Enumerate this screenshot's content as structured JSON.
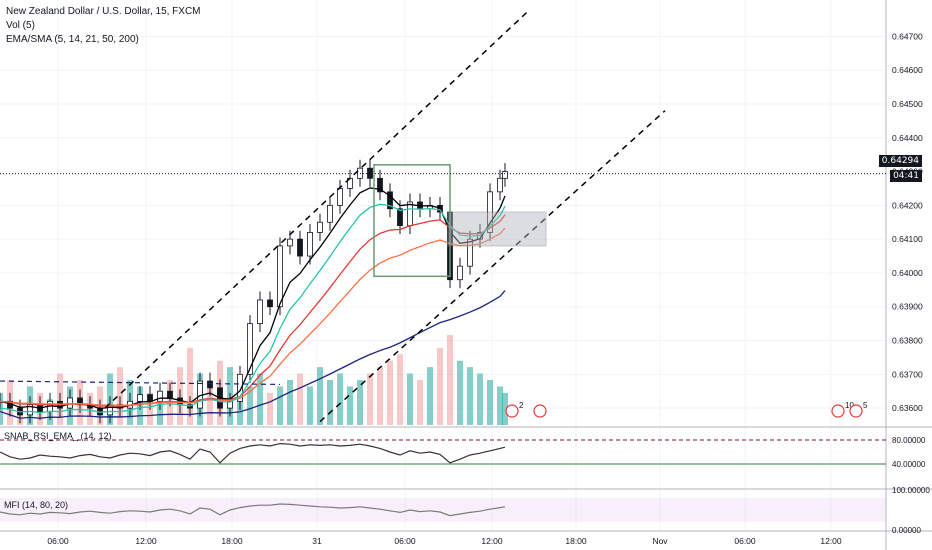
{
  "legend": {
    "title": "New Zealand Dollar / U.S. Dollar, 15, FXCM",
    "vol": "Vol (5)",
    "ma": "EMA/SMA (5, 14, 21, 50, 200)"
  },
  "panes": {
    "rsi_label": "SNAB_RSI_EMA_ (14, 12)",
    "mfi_label": "MFI (14, 80, 20)"
  },
  "price_badge": {
    "last": "0.64294",
    "countdown": "04:41"
  },
  "events": {
    "e1": "2",
    "e2": "10",
    "e3": "5"
  },
  "colors": {
    "up": "#131722",
    "down": "#131722",
    "ema5": "#000000",
    "ema14": "#e53935",
    "ema21": "#ff7043",
    "ema50": "#26c6a8",
    "sma200": "#1a237e",
    "vol_up": "#26a69a",
    "vol_down": "#ef9a9a",
    "rsi_upper": "#880e4f",
    "rsi_lower": "#2e7d32",
    "mfi_line": "#7b7b7b"
  },
  "chart_data": {
    "type": "candlestick",
    "symbol": "NZDUSD",
    "interval": "15",
    "price_axis_ticks": [
      "0.64700",
      "0.64600",
      "0.64500",
      "0.64400",
      "0.64300",
      "0.64200",
      "0.64100",
      "0.64000",
      "0.63900",
      "0.63800",
      "0.63700",
      "0.63600"
    ],
    "ylim": [
      0.6355,
      0.6479
    ],
    "time_axis_ticks": [
      "06:00",
      "12:00",
      "18:00",
      "31",
      "06:00",
      "12:00",
      "18:00",
      "Nov",
      "06:00",
      "12:00"
    ],
    "last_price": 0.64294,
    "price_series": {
      "bars_x_index": [
        0,
        10,
        20,
        30,
        40,
        50,
        60,
        70,
        80,
        90,
        100,
        110,
        120,
        130,
        140,
        150,
        160,
        170,
        180,
        190,
        200,
        210,
        220,
        230,
        240,
        250,
        260,
        270,
        280,
        290,
        300,
        310,
        320,
        330,
        340,
        350,
        360,
        370,
        380,
        390,
        400,
        410,
        420,
        430,
        440,
        450,
        460,
        470,
        480,
        490,
        500,
        505
      ],
      "close": [
        0.6362,
        0.636,
        0.6358,
        0.6361,
        0.6359,
        0.6362,
        0.636,
        0.6363,
        0.6361,
        0.636,
        0.6358,
        0.6361,
        0.636,
        0.6362,
        0.6364,
        0.6362,
        0.6365,
        0.6363,
        0.6361,
        0.636,
        0.6368,
        0.6366,
        0.636,
        0.6362,
        0.637,
        0.6385,
        0.6392,
        0.639,
        0.6408,
        0.641,
        0.6405,
        0.6412,
        0.6415,
        0.642,
        0.6425,
        0.6428,
        0.6431,
        0.6428,
        0.6424,
        0.6419,
        0.6414,
        0.6421,
        0.6419,
        0.642,
        0.6418,
        0.6398,
        0.6402,
        0.641,
        0.6412,
        0.6424,
        0.6428,
        0.643
      ]
    },
    "volume": [
      5,
      7,
      3,
      6,
      5,
      4,
      8,
      6,
      7,
      5,
      6,
      8,
      9,
      7,
      6,
      5,
      4,
      7,
      9,
      12,
      8,
      6,
      10,
      9,
      7,
      6,
      8,
      5,
      6,
      7,
      8,
      6,
      9,
      7,
      8,
      6,
      7,
      8,
      9,
      10,
      11,
      8,
      7,
      9,
      12,
      14,
      10,
      9,
      8,
      7,
      6,
      5
    ],
    "rsi": {
      "upper": 80,
      "lower": 40,
      "axis_ticks": [
        "80.00000",
        "40.00000"
      ],
      "values": [
        60,
        52,
        48,
        50,
        55,
        53,
        52,
        50,
        54,
        56,
        52,
        50,
        55,
        58,
        57,
        54,
        60,
        62,
        56,
        48,
        65,
        60,
        42,
        58,
        66,
        70,
        72,
        70,
        74,
        73,
        70,
        72,
        71,
        72,
        70,
        71,
        73,
        70,
        66,
        60,
        55,
        62,
        58,
        60,
        56,
        42,
        48,
        55,
        58,
        62,
        66,
        68
      ]
    },
    "mfi": {
      "axis_ticks": [
        "100.00000",
        "0.00000"
      ],
      "values": [
        45,
        40,
        38,
        42,
        40,
        44,
        43,
        41,
        45,
        47,
        44,
        42,
        46,
        48,
        47,
        45,
        50,
        52,
        48,
        40,
        55,
        52,
        38,
        50,
        56,
        60,
        62,
        62,
        65,
        64,
        62,
        60,
        58,
        57,
        55,
        56,
        58,
        55,
        52,
        48,
        44,
        50,
        46,
        48,
        45,
        36,
        40,
        44,
        47,
        52,
        56,
        58
      ]
    }
  }
}
